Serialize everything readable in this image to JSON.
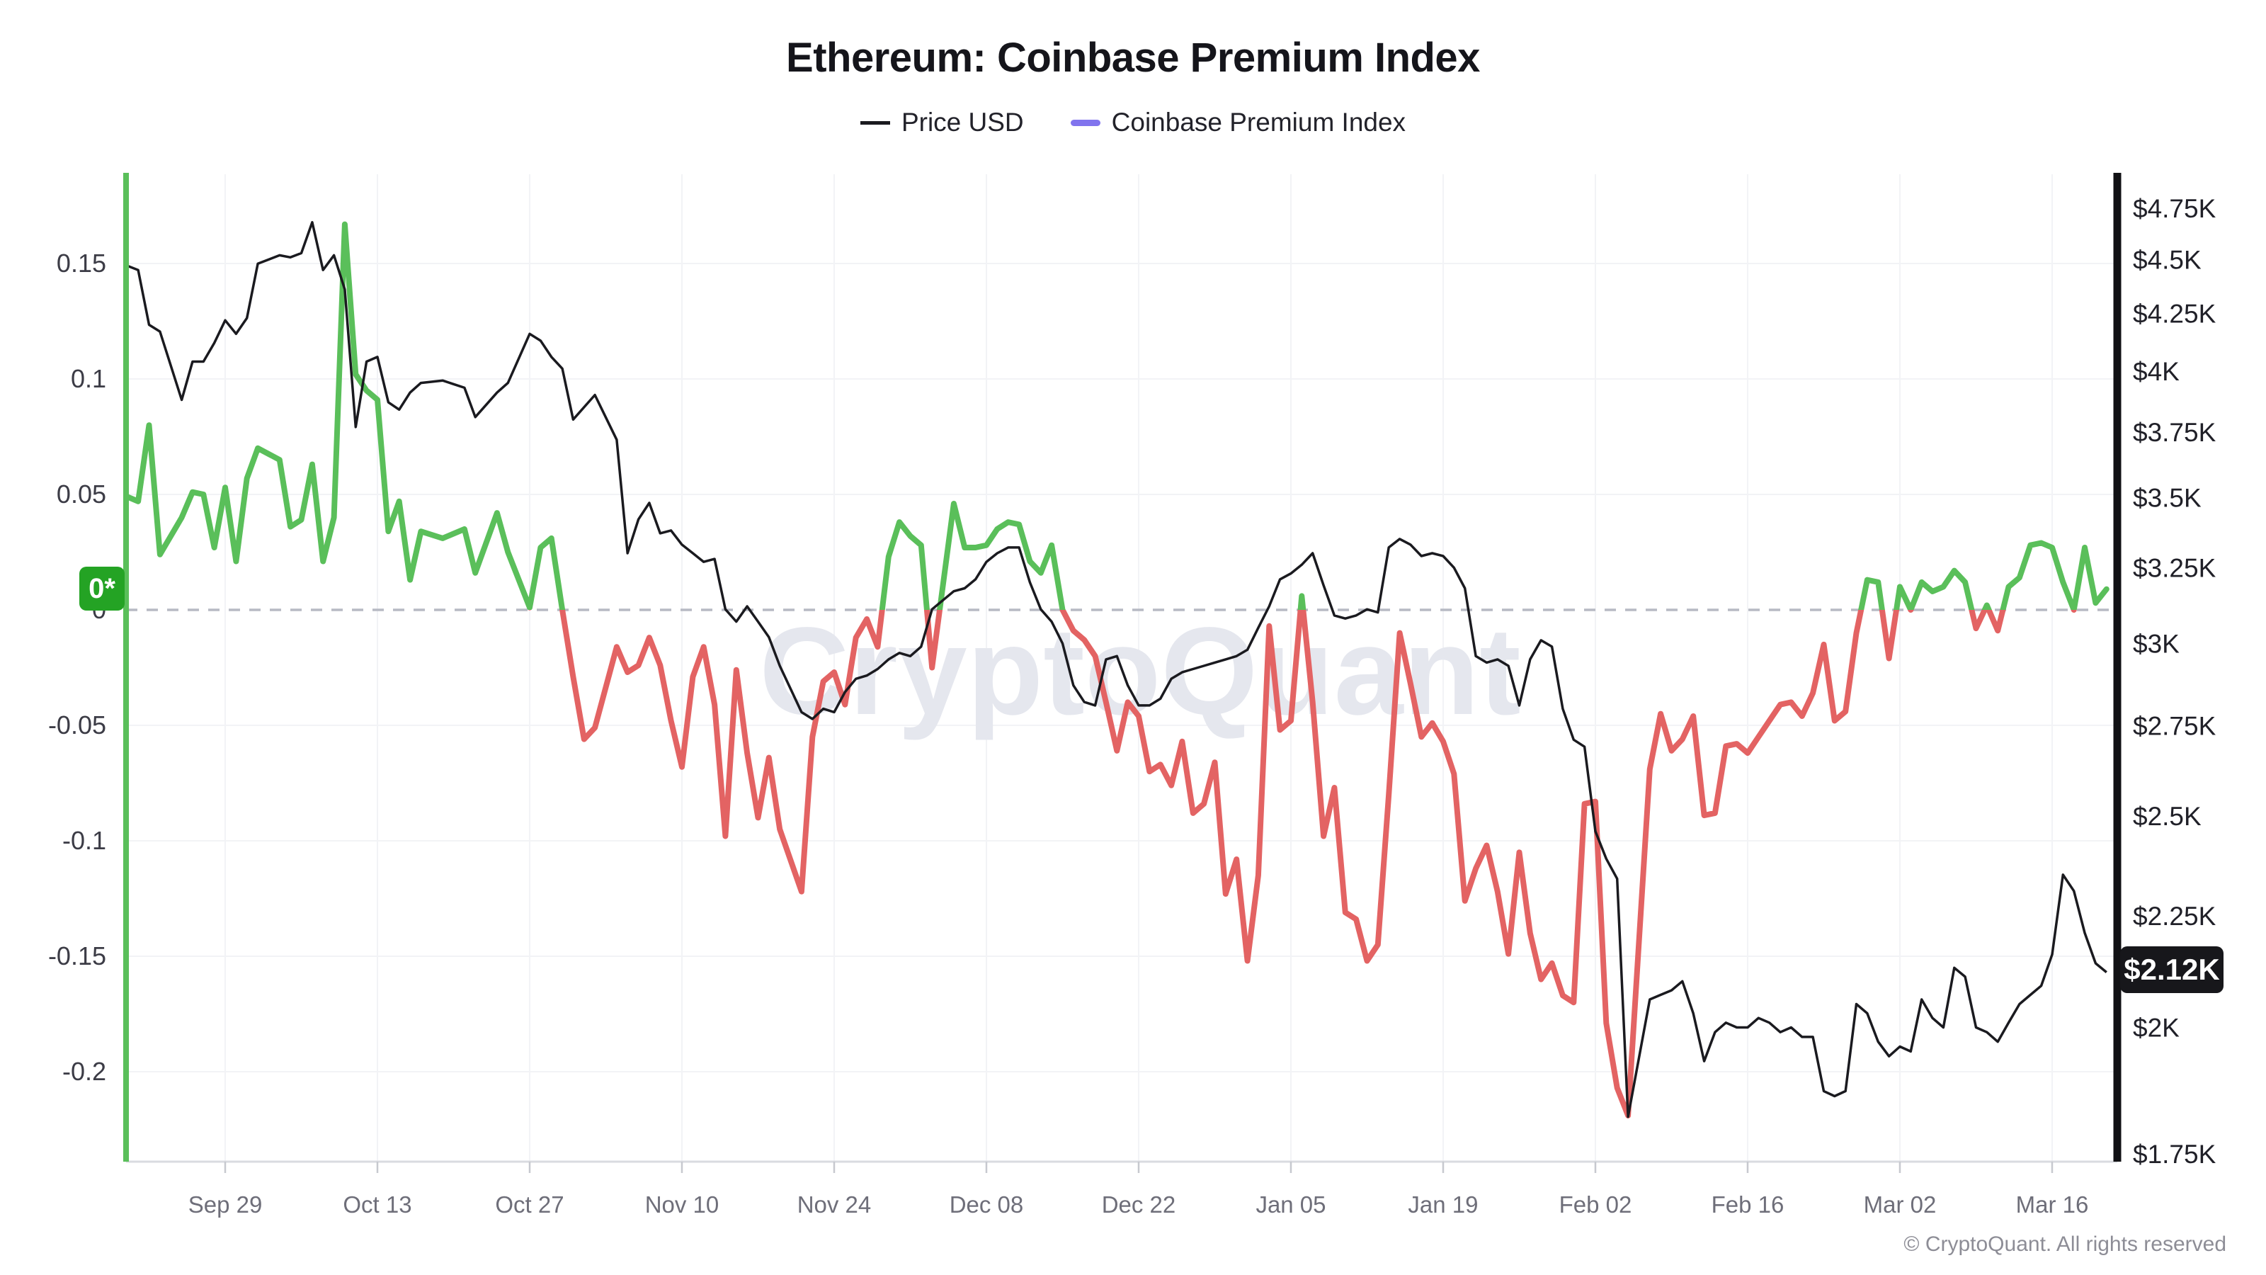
{
  "title": "Ethereum: Coinbase Premium Index",
  "legend": {
    "items": [
      {
        "label": "Price USD",
        "color": "#1a1a1f"
      },
      {
        "label": "Coinbase Premium Index",
        "color": "#8174ee"
      }
    ]
  },
  "watermark": "CryptoQuant",
  "footer": "© CryptoQuant. All rights reserved",
  "badges": {
    "zero": "0*",
    "price": "$2.12K"
  },
  "colors": {
    "price_line": "#1a1a1f",
    "premium_positive": "#5abf5a",
    "premium_negative": "#e36363",
    "zero_badge_bg": "#24a324",
    "price_badge_bg": "#17171b",
    "grid": "#f2f3f6",
    "zero_dash": "#b7bac4",
    "axis_bottom": "#d9dbe0",
    "tick_mark": "#c7c9cf",
    "left_axis_line": "#5abf5a",
    "right_axis_line": "#111114",
    "left_label": "#3c3c46",
    "right_label": "#202028",
    "x_label": "#6e6e79",
    "watermark": "#e5e7ee"
  },
  "axes": {
    "left": {
      "ticks": [
        {
          "label": "0.15",
          "value": 0.15
        },
        {
          "label": "0.1",
          "value": 0.1
        },
        {
          "label": "0.05",
          "value": 0.05
        },
        {
          "label": "0",
          "value": 0
        },
        {
          "label": "-0.05",
          "value": -0.05
        },
        {
          "label": "-0.1",
          "value": -0.1
        },
        {
          "label": "-0.15",
          "value": -0.15
        },
        {
          "label": "-0.2",
          "value": -0.2
        }
      ]
    },
    "right": {
      "ticks": [
        {
          "label": "$4.75K",
          "value": 4750
        },
        {
          "label": "$4.5K",
          "value": 4500
        },
        {
          "label": "$4.25K",
          "value": 4250
        },
        {
          "label": "$4K",
          "value": 4000
        },
        {
          "label": "$3.75K",
          "value": 3750
        },
        {
          "label": "$3.5K",
          "value": 3500
        },
        {
          "label": "$3.25K",
          "value": 3250
        },
        {
          "label": "$3K",
          "value": 3000
        },
        {
          "label": "$2.75K",
          "value": 2750
        },
        {
          "label": "$2.5K",
          "value": 2500
        },
        {
          "label": "$2.25K",
          "value": 2250
        },
        {
          "label": "$2K",
          "value": 2000
        },
        {
          "label": "$1.75K",
          "value": 1750
        }
      ]
    },
    "x": {
      "ticks": [
        {
          "label": "Sep 29",
          "day": 9
        },
        {
          "label": "Oct 13",
          "day": 23
        },
        {
          "label": "Oct 27",
          "day": 37
        },
        {
          "label": "Nov 10",
          "day": 51
        },
        {
          "label": "Nov 24",
          "day": 65
        },
        {
          "label": "Dec 08",
          "day": 79
        },
        {
          "label": "Dec 22",
          "day": 93
        },
        {
          "label": "Jan 05",
          "day": 107
        },
        {
          "label": "Jan 19",
          "day": 121
        },
        {
          "label": "Feb 02",
          "day": 135
        },
        {
          "label": "Feb 16",
          "day": 149
        },
        {
          "label": "Mar 02",
          "day": 163
        },
        {
          "label": "Mar 16",
          "day": 177
        }
      ]
    }
  },
  "chart_data": {
    "type": "line",
    "title": "Ethereum: Coinbase Premium Index",
    "grid": true,
    "legend_position": "top",
    "x_range": [
      "Sep 20",
      "Mar 21"
    ],
    "left_axis": {
      "series": "Coinbase Premium Index",
      "scale": "linear",
      "min": -0.24,
      "max": 0.19,
      "zero_reference_line": true
    },
    "right_axis": {
      "series": "Price USD",
      "scale": "log",
      "min": 1750,
      "max": 4750,
      "latest_value_label": "$2.12K"
    },
    "series": [
      {
        "name": "Price USD",
        "axis": "right",
        "color": "#1a1a1f",
        "style": "thin-line"
      },
      {
        "name": "Coinbase Premium Index",
        "axis": "left",
        "positive_color": "#5abf5a",
        "negative_color": "#e36363",
        "style": "thick-line-colored-by-sign",
        "latest_value_label": "0*"
      }
    ],
    "point_format": [
      "date",
      "day_offset_from_Sep20",
      "premium_index",
      "price_usd"
    ],
    "points": [
      [
        "Sep 20",
        0,
        0.049,
        4470
      ],
      [
        "Sep 21",
        1,
        0.047,
        4450
      ],
      [
        "Sep 22",
        2,
        0.08,
        4200
      ],
      [
        "Sep 23",
        3,
        0.024,
        4170
      ],
      [
        "Sep 25",
        5,
        0.04,
        3880
      ],
      [
        "Sep 26",
        6,
        0.051,
        4040
      ],
      [
        "Sep 27",
        7,
        0.05,
        4040
      ],
      [
        "Sep 28",
        8,
        0.027,
        4120
      ],
      [
        "Sep 29",
        9,
        0.053,
        4220
      ],
      [
        "Sep 30",
        10,
        0.021,
        4160
      ],
      [
        "Oct 01",
        11,
        0.057,
        4230
      ],
      [
        "Oct 02",
        12,
        0.07,
        4480
      ],
      [
        "Oct 04",
        14,
        0.065,
        4520
      ],
      [
        "Oct 05",
        15,
        0.036,
        4510
      ],
      [
        "Oct 06",
        16,
        0.039,
        4530
      ],
      [
        "Oct 07",
        17,
        0.063,
        4680
      ],
      [
        "Oct 08",
        18,
        0.021,
        4450
      ],
      [
        "Oct 09",
        19,
        0.04,
        4520
      ],
      [
        "Oct 10",
        20,
        0.167,
        4360
      ],
      [
        "Oct 11",
        21,
        0.102,
        3770
      ],
      [
        "Oct 12",
        22,
        0.095,
        4040
      ],
      [
        "Oct 13",
        23,
        0.091,
        4060
      ],
      [
        "Oct 14",
        24,
        0.034,
        3870
      ],
      [
        "Oct 15",
        25,
        0.047,
        3840
      ],
      [
        "Oct 16",
        26,
        0.013,
        3910
      ],
      [
        "Oct 17",
        27,
        0.034,
        3950
      ],
      [
        "Oct 19",
        29,
        0.031,
        3960
      ],
      [
        "Oct 21",
        31,
        0.035,
        3930
      ],
      [
        "Oct 22",
        32,
        0.016,
        3810
      ],
      [
        "Oct 24",
        34,
        0.042,
        3910
      ],
      [
        "Oct 25",
        35,
        0.025,
        3950
      ],
      [
        "Oct 27",
        37,
        0.001,
        4160
      ],
      [
        "Oct 28",
        38,
        0.027,
        4130
      ],
      [
        "Oct 29",
        39,
        0.031,
        4060
      ],
      [
        "Oct 30",
        40,
        0.0,
        4010
      ],
      [
        "Oct 31",
        41,
        -0.029,
        3800
      ],
      [
        "Nov 01",
        42,
        -0.056,
        3850
      ],
      [
        "Nov 02",
        43,
        -0.051,
        3900
      ],
      [
        "Nov 04",
        45,
        -0.016,
        3720
      ],
      [
        "Nov 05",
        46,
        -0.027,
        3300
      ],
      [
        "Nov 06",
        47,
        -0.024,
        3420
      ],
      [
        "Nov 07",
        48,
        -0.012,
        3480
      ],
      [
        "Nov 08",
        49,
        -0.024,
        3370
      ],
      [
        "Nov 09",
        50,
        -0.048,
        3380
      ],
      [
        "Nov 10",
        51,
        -0.068,
        3330
      ],
      [
        "Nov 11",
        52,
        -0.029,
        3300
      ],
      [
        "Nov 12",
        53,
        -0.016,
        3270
      ],
      [
        "Nov 13",
        54,
        -0.041,
        3280
      ],
      [
        "Nov 14",
        55,
        -0.098,
        3110
      ],
      [
        "Nov 15",
        56,
        -0.026,
        3070
      ],
      [
        "Nov 16",
        57,
        -0.062,
        3120
      ],
      [
        "Nov 17",
        58,
        -0.09,
        3070
      ],
      [
        "Nov 18",
        59,
        -0.064,
        3020
      ],
      [
        "Nov 19",
        60,
        -0.095,
        2930
      ],
      [
        "Nov 21",
        62,
        -0.122,
        2790
      ],
      [
        "Nov 22",
        63,
        -0.055,
        2770
      ],
      [
        "Nov 23",
        64,
        -0.031,
        2800
      ],
      [
        "Nov 24",
        65,
        -0.027,
        2790
      ],
      [
        "Nov 25",
        66,
        -0.041,
        2850
      ],
      [
        "Nov 26",
        67,
        -0.012,
        2890
      ],
      [
        "Nov 27",
        68,
        -0.004,
        2900
      ],
      [
        "Nov 28",
        69,
        -0.016,
        2920
      ],
      [
        "Nov 29",
        70,
        0.023,
        2950
      ],
      [
        "Nov 30",
        71,
        0.038,
        2970
      ],
      [
        "Dec 01",
        72,
        0.032,
        2960
      ],
      [
        "Dec 02",
        73,
        0.028,
        2990
      ],
      [
        "Dec 03",
        74,
        -0.025,
        3110
      ],
      [
        "Dec 05",
        76,
        0.046,
        3170
      ],
      [
        "Dec 06",
        77,
        0.027,
        3180
      ],
      [
        "Dec 07",
        78,
        0.027,
        3210
      ],
      [
        "Dec 08",
        79,
        0.028,
        3270
      ],
      [
        "Dec 09",
        80,
        0.035,
        3300
      ],
      [
        "Dec 10",
        81,
        0.038,
        3320
      ],
      [
        "Dec 11",
        82,
        0.037,
        3320
      ],
      [
        "Dec 12",
        83,
        0.021,
        3200
      ],
      [
        "Dec 13",
        84,
        0.016,
        3110
      ],
      [
        "Dec 14",
        85,
        0.028,
        3070
      ],
      [
        "Dec 15",
        86,
        0.0,
        3000
      ],
      [
        "Dec 16",
        87,
        -0.009,
        2870
      ],
      [
        "Dec 17",
        88,
        -0.013,
        2820
      ],
      [
        "Dec 18",
        89,
        -0.02,
        2810
      ],
      [
        "Dec 19",
        90,
        -0.04,
        2950
      ],
      [
        "Dec 20",
        91,
        -0.061,
        2960
      ],
      [
        "Dec 21",
        92,
        -0.04,
        2870
      ],
      [
        "Dec 22",
        93,
        -0.046,
        2810
      ],
      [
        "Dec 23",
        94,
        -0.07,
        2810
      ],
      [
        "Dec 24",
        95,
        -0.067,
        2830
      ],
      [
        "Dec 25",
        96,
        -0.076,
        2890
      ],
      [
        "Dec 26",
        97,
        -0.057,
        2910
      ],
      [
        "Dec 27",
        98,
        -0.088,
        2920
      ],
      [
        "Dec 28",
        99,
        -0.084,
        2930
      ],
      [
        "Dec 29",
        100,
        -0.066,
        2940
      ],
      [
        "Dec 30",
        101,
        -0.123,
        2950
      ],
      [
        "Dec 31",
        102,
        -0.108,
        2960
      ],
      [
        "Jan 01",
        103,
        -0.152,
        2980
      ],
      [
        "Jan 02",
        104,
        -0.115,
        3050
      ],
      [
        "Jan 03",
        105,
        -0.007,
        3120
      ],
      [
        "Jan 04",
        106,
        -0.052,
        3210
      ],
      [
        "Jan 05",
        107,
        -0.048,
        3230
      ],
      [
        "Jan 06",
        108,
        0.006,
        3260
      ],
      [
        "Jan 07",
        109,
        -0.04,
        3300
      ],
      [
        "Jan 08",
        110,
        -0.098,
        3190
      ],
      [
        "Jan 09",
        111,
        -0.077,
        3090
      ],
      [
        "Jan 10",
        112,
        -0.131,
        3080
      ],
      [
        "Jan 11",
        113,
        -0.134,
        3090
      ],
      [
        "Jan 12",
        114,
        -0.152,
        3110
      ],
      [
        "Jan 13",
        115,
        -0.145,
        3100
      ],
      [
        "Jan 14",
        116,
        -0.08,
        3320
      ],
      [
        "Jan 15",
        117,
        -0.01,
        3350
      ],
      [
        "Jan 16",
        118,
        -0.032,
        3330
      ],
      [
        "Jan 17",
        119,
        -0.055,
        3290
      ],
      [
        "Jan 18",
        120,
        -0.049,
        3300
      ],
      [
        "Jan 19",
        121,
        -0.057,
        3290
      ],
      [
        "Jan 20",
        122,
        -0.071,
        3250
      ],
      [
        "Jan 21",
        123,
        -0.126,
        3180
      ],
      [
        "Jan 22",
        124,
        -0.112,
        2960
      ],
      [
        "Jan 23",
        125,
        -0.102,
        2940
      ],
      [
        "Jan 24",
        126,
        -0.122,
        2950
      ],
      [
        "Jan 25",
        127,
        -0.149,
        2930
      ],
      [
        "Jan 26",
        128,
        -0.105,
        2810
      ],
      [
        "Jan 27",
        129,
        -0.14,
        2950
      ],
      [
        "Jan 28",
        130,
        -0.16,
        3010
      ],
      [
        "Jan 29",
        131,
        -0.153,
        2990
      ],
      [
        "Jan 30",
        132,
        -0.167,
        2800
      ],
      [
        "Jan 31",
        133,
        -0.17,
        2710
      ],
      [
        "Feb 01",
        134,
        -0.084,
        2690
      ],
      [
        "Feb 02",
        135,
        -0.083,
        2460
      ],
      [
        "Feb 03",
        136,
        -0.179,
        2390
      ],
      [
        "Feb 04",
        137,
        -0.207,
        2340
      ],
      [
        "Feb 05",
        138,
        -0.219,
        1820
      ],
      [
        "Feb 07",
        140,
        -0.069,
        2060
      ],
      [
        "Feb 08",
        141,
        -0.045,
        2070
      ],
      [
        "Feb 09",
        142,
        -0.061,
        2080
      ],
      [
        "Feb 10",
        143,
        -0.056,
        2100
      ],
      [
        "Feb 11",
        144,
        -0.046,
        2030
      ],
      [
        "Feb 12",
        145,
        -0.089,
        1930
      ],
      [
        "Feb 13",
        146,
        -0.088,
        1990
      ],
      [
        "Feb 14",
        147,
        -0.059,
        2010
      ],
      [
        "Feb 15",
        148,
        -0.058,
        2000
      ],
      [
        "Feb 16",
        149,
        -0.062,
        2000
      ],
      [
        "Feb 17",
        150,
        -0.055,
        2020
      ],
      [
        "Feb 18",
        151,
        -0.048,
        2010
      ],
      [
        "Feb 19",
        152,
        -0.041,
        1990
      ],
      [
        "Feb 20",
        153,
        -0.04,
        2000
      ],
      [
        "Feb 21",
        154,
        -0.046,
        1980
      ],
      [
        "Feb 22",
        155,
        -0.036,
        1980
      ],
      [
        "Feb 23",
        156,
        -0.015,
        1870
      ],
      [
        "Feb 24",
        157,
        -0.048,
        1860
      ],
      [
        "Feb 25",
        158,
        -0.044,
        1870
      ],
      [
        "Feb 26",
        159,
        -0.01,
        2050
      ],
      [
        "Feb 27",
        160,
        0.013,
        2030
      ],
      [
        "Feb 28",
        161,
        0.012,
        1970
      ],
      [
        "Mar 01",
        162,
        -0.021,
        1940
      ],
      [
        "Mar 02",
        163,
        0.01,
        1960
      ],
      [
        "Mar 03",
        164,
        0.0,
        1950
      ],
      [
        "Mar 04",
        165,
        0.012,
        2060
      ],
      [
        "Mar 05",
        166,
        0.008,
        2020
      ],
      [
        "Mar 06",
        167,
        0.01,
        2000
      ],
      [
        "Mar 07",
        168,
        0.017,
        2130
      ],
      [
        "Mar 08",
        169,
        0.012,
        2110
      ],
      [
        "Mar 09",
        170,
        -0.008,
        2000
      ],
      [
        "Mar 10",
        171,
        0.002,
        1990
      ],
      [
        "Mar 11",
        172,
        -0.009,
        1970
      ],
      [
        "Mar 12",
        173,
        0.01,
        2010
      ],
      [
        "Mar 13",
        174,
        0.014,
        2050
      ],
      [
        "Mar 14",
        175,
        0.028,
        2070
      ],
      [
        "Mar 15",
        176,
        0.029,
        2090
      ],
      [
        "Mar 16",
        177,
        0.027,
        2160
      ],
      [
        "Mar 17",
        178,
        0.012,
        2350
      ],
      [
        "Mar 18",
        179,
        0.0,
        2310
      ],
      [
        "Mar 19",
        180,
        0.027,
        2210
      ],
      [
        "Mar 20",
        181,
        0.003,
        2140
      ],
      [
        "Mar 21",
        182,
        0.009,
        2120
      ]
    ]
  }
}
